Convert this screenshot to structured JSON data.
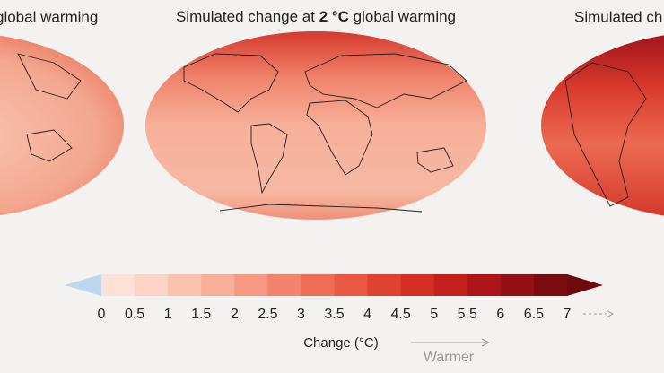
{
  "maps": {
    "left_title": "global warming",
    "center_title": {
      "before": "Simulated change at ",
      "bold": "2 °C",
      "after": " global warming"
    },
    "right_title": "Simulated ch"
  },
  "colorbar": {
    "ticks": [
      0,
      0.5,
      1,
      1.5,
      2,
      2.5,
      3,
      3.5,
      4,
      4.5,
      5,
      5.5,
      6,
      6.5,
      7
    ],
    "colors": [
      "#fde1d7",
      "#fcd3c5",
      "#fbc2ae",
      "#f9ae98",
      "#f79982",
      "#f3836c",
      "#ef6d57",
      "#e95842",
      "#e04232",
      "#d42f26",
      "#c2201d",
      "#ac1618",
      "#940f14",
      "#7c0b10"
    ],
    "under_color": "#bcd7ee",
    "over_color": "#6e0a0e",
    "label": "Change (°C)",
    "arrow_label": "Warmer"
  }
}
